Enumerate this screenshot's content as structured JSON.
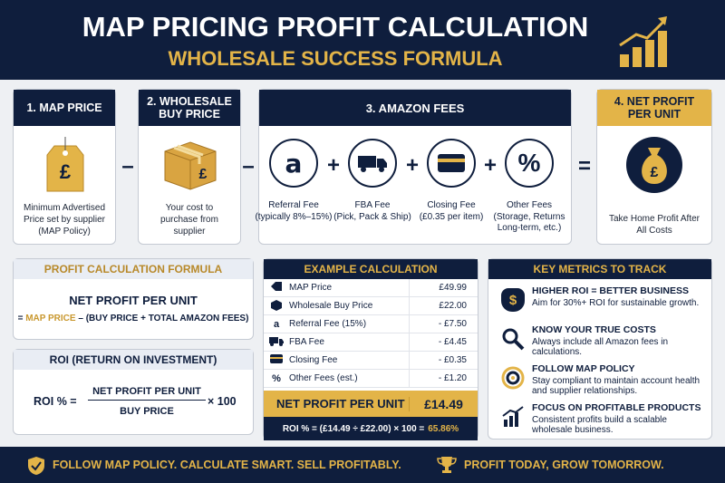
{
  "header": {
    "title": "MAP PRICING PROFIT CALCULATION",
    "subtitle": "WHOLESALE SUCCESS FORMULA"
  },
  "steps": [
    {
      "title": "1. MAP PRICE",
      "icon": "£",
      "description": "Minimum Advertised Price set by supplier (MAP Policy)"
    },
    {
      "title": "2. WHOLESALE BUY PRICE",
      "icon": "£",
      "description": "Your cost to purchase from supplier"
    },
    {
      "title": "3. AMAZON FEES",
      "fees": [
        {
          "icon": "a",
          "name": "Referral Fee",
          "detail": "(typically 8%–15%)"
        },
        {
          "name": "FBA Fee",
          "detail": "(Pick, Pack & Ship)"
        },
        {
          "name": "Closing Fee",
          "detail": "(£0.35 per item)"
        },
        {
          "icon": "%",
          "name": "Other Fees",
          "detail": "(Storage, Returns Long-term, etc.)"
        }
      ]
    },
    {
      "title": "4. NET PROFIT PER UNIT",
      "icon": "£",
      "description": "Take Home Profit After All Costs"
    }
  ],
  "operators": [
    "–",
    "–",
    "+",
    "+",
    "+",
    "="
  ],
  "formula": {
    "title": "PROFIT CALCULATION FORMULA",
    "heading": "NET PROFIT PER UNIT",
    "prefix": "=",
    "highlight": "MAP PRICE",
    "rest": "– (BUY PRICE + TOTAL AMAZON FEES)"
  },
  "roi": {
    "title": "ROI (RETURN ON INVESTMENT)",
    "lhs": "ROI % =",
    "numerator": "NET PROFIT PER UNIT",
    "denominator": "BUY PRICE",
    "multiplier": "× 100"
  },
  "example": {
    "title": "EXAMPLE CALCULATION",
    "rows": [
      {
        "label": "MAP Price",
        "value": "£49.99"
      },
      {
        "label": "Wholesale Buy Price",
        "value": "£22.00"
      },
      {
        "icon": "a",
        "label": "Referral Fee (15%)",
        "value": "- £7.50"
      },
      {
        "label": "FBA Fee",
        "value": "- £4.45"
      },
      {
        "label": "Closing Fee",
        "value": "- £0.35"
      },
      {
        "icon": "%",
        "label": "Other Fees (est.)",
        "value": "- £1.20"
      }
    ],
    "total_label": "NET PROFIT PER UNIT",
    "total_value": "£14.49",
    "roi": "ROI % = (£14.49 ÷ £22.00) × 100 =",
    "roi_result": "65.86%"
  },
  "metrics": {
    "title": "KEY METRICS TO TRACK",
    "items": [
      {
        "icon": "$",
        "title": "HIGHER ROI = BETTER BUSINESS",
        "description": "Aim for 30%+ ROI for sustainable growth."
      },
      {
        "title": "KNOW YOUR TRUE COSTS",
        "description": "Always include all Amazon fees in calculations."
      },
      {
        "title": "FOLLOW MAP POLICY",
        "description": "Stay compliant to maintain account health and supplier relationships."
      },
      {
        "title": "FOCUS ON PROFITABLE PRODUCTS",
        "description": "Consistent profits build a scalable wholesale business."
      }
    ]
  },
  "footer": {
    "left": "FOLLOW MAP POLICY. CALCULATE SMART. SELL PROFITABLY.",
    "right": "PROFIT TODAY, GROW TOMORROW."
  }
}
